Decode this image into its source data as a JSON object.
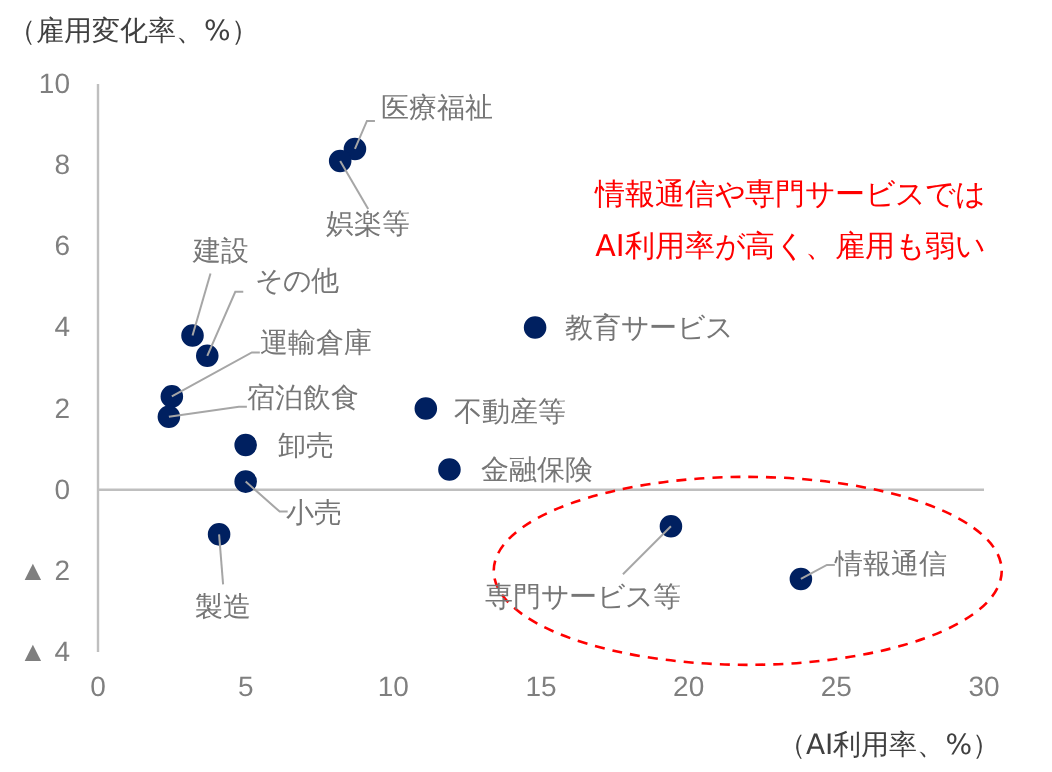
{
  "chart_data": {
    "type": "scatter",
    "xlabel": "（AI利用率、%）",
    "ylabel": "（雇用変化率、%）",
    "xlim": [
      0,
      30
    ],
    "xticks": [
      0,
      5,
      10,
      15,
      20,
      25,
      30
    ],
    "ylim": [
      -4,
      10
    ],
    "yticks": [
      10,
      8,
      6,
      4,
      2,
      0,
      {
        "value": -2,
        "label": "▲ 2"
      },
      {
        "value": -4,
        "label": "▲ 4"
      }
    ],
    "grid": false,
    "marker": "circle",
    "ref_lines": [
      {
        "axis": "y",
        "value": 0
      }
    ],
    "annotations": [
      "情報通信や専門サービスでは",
      "AI利用率が高く、雇用も弱い"
    ],
    "series": [
      {
        "name": "医療福祉",
        "color": "#002060",
        "x": [
          8.7
        ],
        "values": [
          8.4
        ]
      },
      {
        "name": "娯楽等",
        "color": "#002060",
        "x": [
          8.2
        ],
        "values": [
          8.1
        ]
      },
      {
        "name": "建設",
        "color": "#002060",
        "x": [
          3.2
        ],
        "values": [
          3.8
        ]
      },
      {
        "name": "その他",
        "color": "#002060",
        "x": [
          3.7
        ],
        "values": [
          3.3
        ]
      },
      {
        "name": "運輸倉庫",
        "color": "#002060",
        "x": [
          2.5
        ],
        "values": [
          2.3
        ]
      },
      {
        "name": "宿泊飲食",
        "color": "#002060",
        "x": [
          2.4
        ],
        "values": [
          1.8
        ]
      },
      {
        "name": "卸売",
        "color": "#002060",
        "x": [
          5.0
        ],
        "values": [
          1.1
        ]
      },
      {
        "name": "小売",
        "color": "#002060",
        "x": [
          5.0
        ],
        "values": [
          0.2
        ]
      },
      {
        "name": "製造",
        "color": "#002060",
        "x": [
          4.1
        ],
        "values": [
          -1.1
        ]
      },
      {
        "name": "不動産等",
        "color": "#002060",
        "x": [
          11.1
        ],
        "values": [
          2.0
        ]
      },
      {
        "name": "金融保険",
        "color": "#002060",
        "x": [
          11.9
        ],
        "values": [
          0.5
        ]
      },
      {
        "name": "教育サービス",
        "color": "#002060",
        "x": [
          14.8
        ],
        "values": [
          4.0
        ]
      },
      {
        "name": "専門サービス等",
        "color": "#002060",
        "x": [
          19.4
        ],
        "values": [
          -0.9
        ]
      },
      {
        "name": "情報通信",
        "color": "#002060",
        "x": [
          23.8
        ],
        "values": [
          -2.2
        ]
      }
    ]
  }
}
